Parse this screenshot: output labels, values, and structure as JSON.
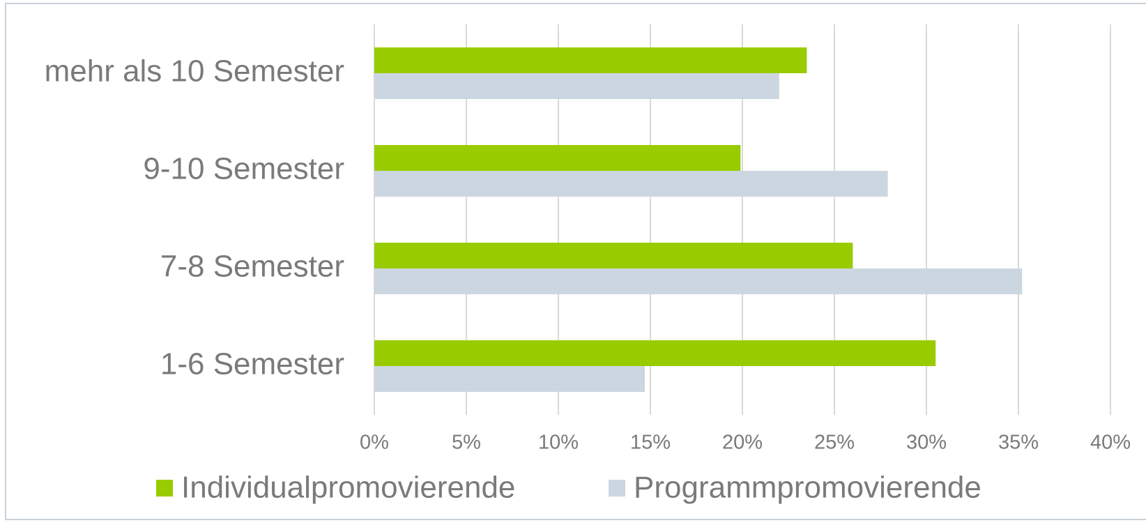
{
  "chart_data": {
    "type": "bar",
    "orientation": "horizontal",
    "categories": [
      "mehr als 10 Semester",
      "9-10 Semester",
      "7-8 Semester",
      "1-6 Semester"
    ],
    "series": [
      {
        "name": "Individualpromovierende",
        "color": "#99cc00",
        "values": [
          23.5,
          19.9,
          26.0,
          30.5
        ]
      },
      {
        "name": "Programmpromovierende",
        "color": "#ccd6e0",
        "values": [
          22.0,
          27.9,
          35.2,
          14.7
        ]
      }
    ],
    "xlim": [
      0,
      40
    ],
    "xticks": [
      {
        "value": 0,
        "label": "0%"
      },
      {
        "value": 5,
        "label": "5%"
      },
      {
        "value": 10,
        "label": "10%"
      },
      {
        "value": 15,
        "label": "15%"
      },
      {
        "value": 20,
        "label": "20%"
      },
      {
        "value": 25,
        "label": "25%"
      },
      {
        "value": 30,
        "label": "30%"
      },
      {
        "value": 35,
        "label": "35%"
      },
      {
        "value": 40,
        "label": "40%"
      }
    ],
    "grid": true,
    "legend": "bottom"
  }
}
